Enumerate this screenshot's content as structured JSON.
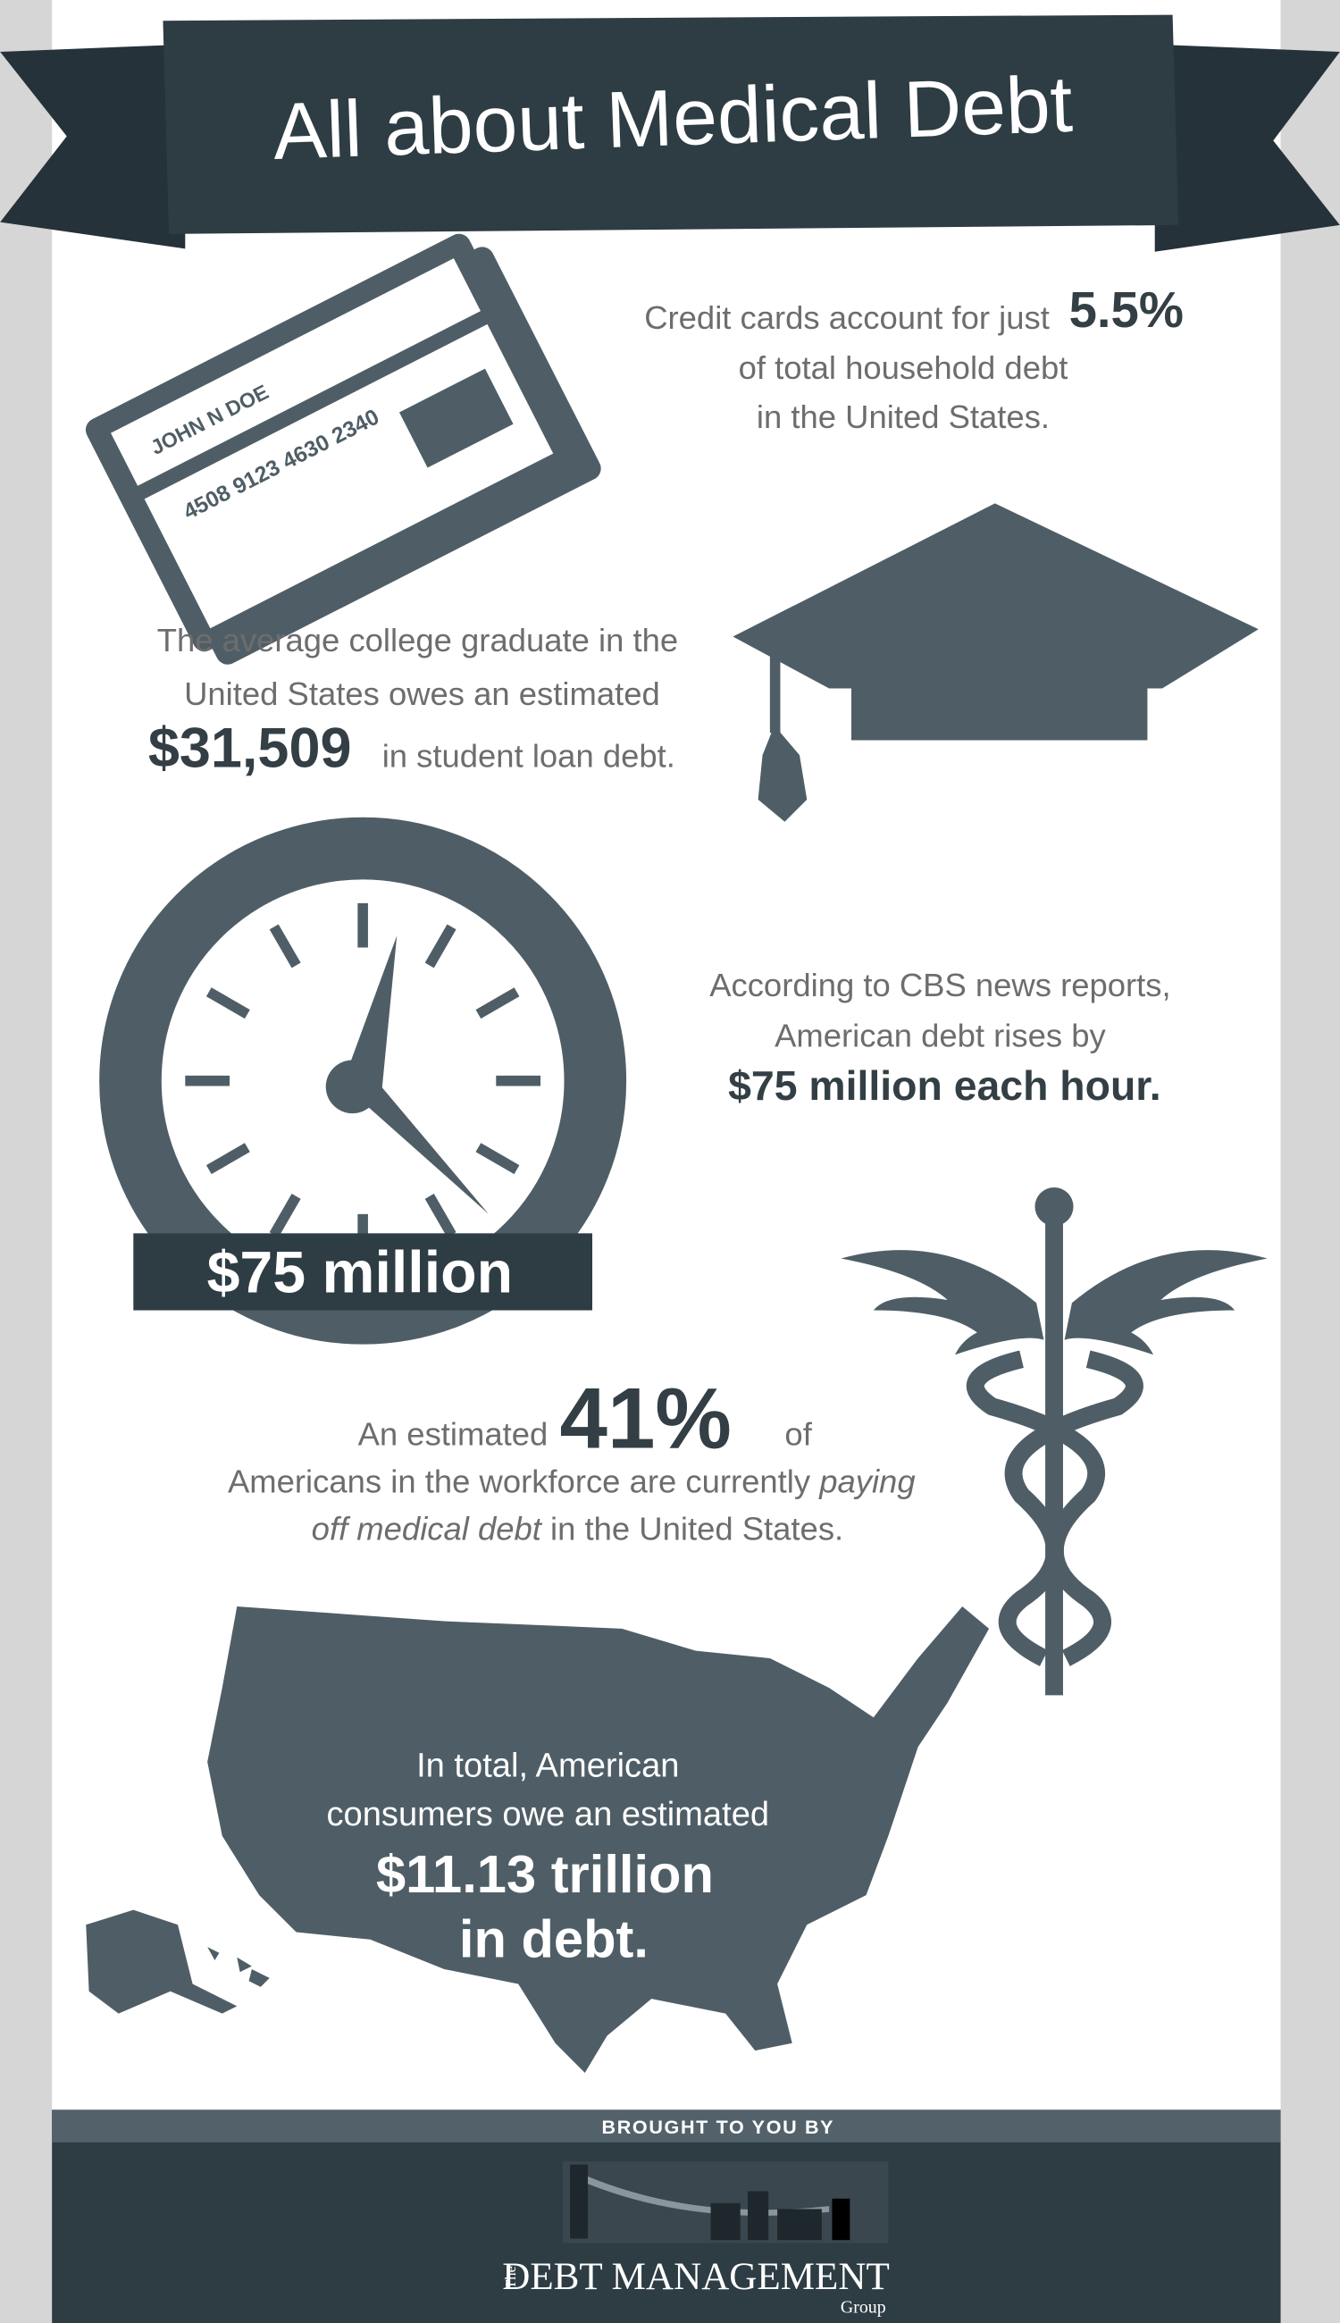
{
  "header": {
    "title": "All about Medical Debt"
  },
  "credit_card": {
    "card_name": "JOHN N DOE",
    "card_number": "4508 9123 4630 2340",
    "line1": "Credit cards account for just",
    "stat": "5.5%",
    "line2": "of total household debt",
    "line3": "in the United States."
  },
  "student_loans": {
    "line1": "The average college graduate in the",
    "line2": "United States owes an estimated",
    "stat": "$31,509",
    "line3": "in student loan debt."
  },
  "debt_growth": {
    "line1": "According to CBS news reports,",
    "line2": "American debt rises by",
    "line3": "$75 million each hour.",
    "badge": "$75 million"
  },
  "medical_debt": {
    "pre": "An estimated",
    "stat": "41%",
    "post": "of",
    "line2": "Americans in the workforce are currently",
    "line2_emphasis": "paying",
    "line3_emphasis": "off medical debt",
    "line3": "in the United States."
  },
  "total_debt": {
    "line1": "In total, American",
    "line2": "consumers owe an estimated",
    "stat": "$11.13 trillion",
    "line4": "in debt."
  },
  "footer": {
    "label": "BROUGHT TO YOU BY",
    "logo_prefix": "The",
    "logo_name": "DEBT MANAGEMENT",
    "logo_suffix": "Group"
  }
}
